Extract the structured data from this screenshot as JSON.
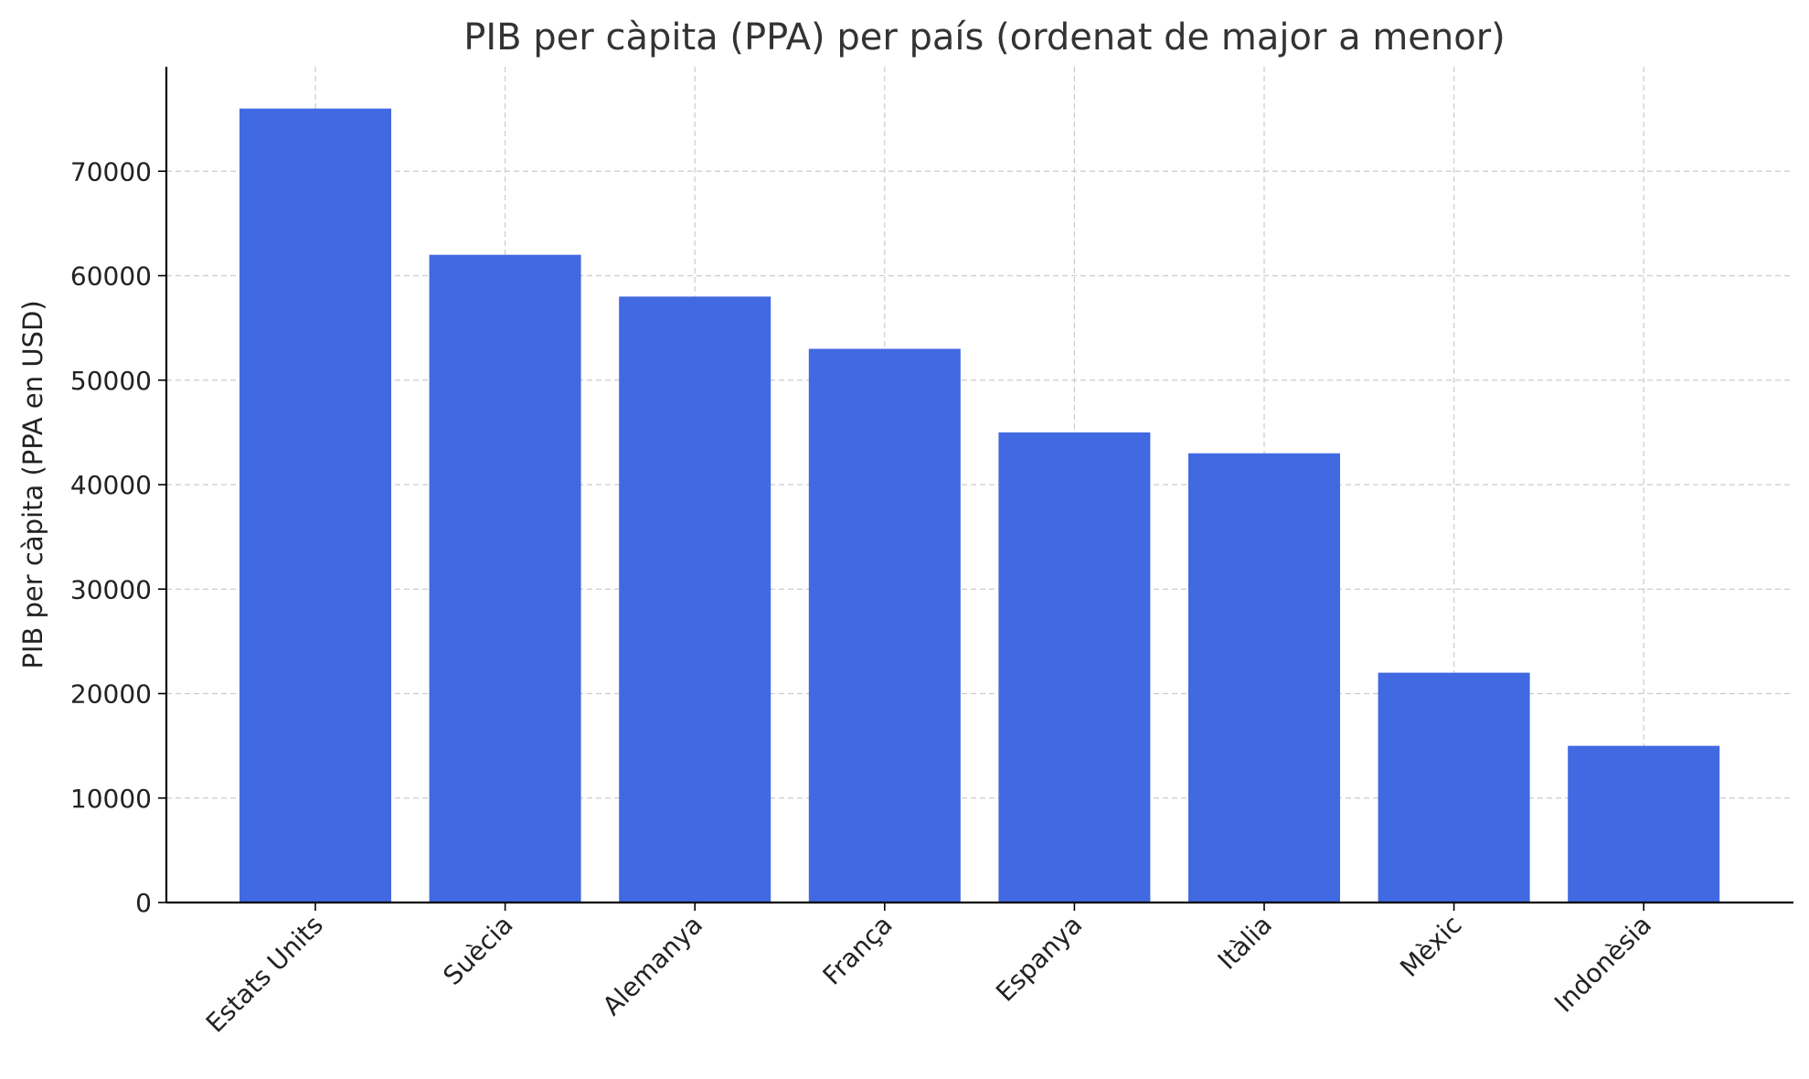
{
  "chart_data": {
    "type": "bar",
    "title": "PIB per càpita (PPA) per país (ordenat de major a menor)",
    "xlabel": "",
    "ylabel": "PIB per càpita (PPA en USD)",
    "categories": [
      "Estats Units",
      "Suècia",
      "Alemanya",
      "França",
      "Espanya",
      "Itàlia",
      "Mèxic",
      "Indonèsia"
    ],
    "values": [
      76000,
      62000,
      58000,
      53000,
      45000,
      43000,
      22000,
      15000
    ],
    "ylim": [
      0,
      80000
    ],
    "yticks": [
      0,
      10000,
      20000,
      30000,
      40000,
      50000,
      60000,
      70000
    ],
    "grid": true,
    "bar_color": "#4169e1"
  }
}
